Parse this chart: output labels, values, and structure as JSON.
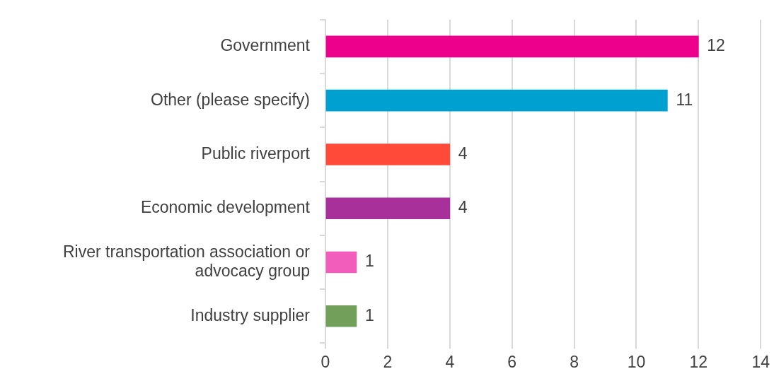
{
  "chart_data": {
    "type": "bar",
    "orientation": "horizontal",
    "categories": [
      "Government",
      "Other (please specify)",
      "Public riverport",
      "Economic development",
      "River transportation association or advocacy group",
      "Industry supplier"
    ],
    "values": [
      12,
      11,
      4,
      4,
      1,
      1
    ],
    "colors": [
      "#ec008c",
      "#00a0d0",
      "#ff4a3a",
      "#a8309a",
      "#f25cba",
      "#72a05a"
    ],
    "xlim": [
      0,
      14
    ],
    "xticks": [
      0,
      2,
      4,
      6,
      8,
      10,
      12,
      14
    ],
    "grid": "x",
    "data_labels": true,
    "legend": false
  }
}
